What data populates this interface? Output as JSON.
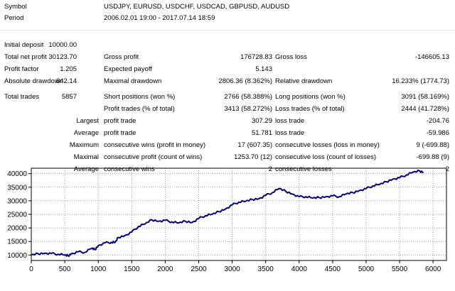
{
  "header": {
    "symbol_label": "Symbol",
    "symbol_value": "USDJPY, EURUSD, USDCHF, USDCAD, GBPUSD, AUDUSD",
    "period_label": "Period",
    "period_value": "2006.02.01 19:00 - 2017.07.14 18:59"
  },
  "report": {
    "initial_deposit_label": "Initial deposit",
    "initial_deposit": "10000.00",
    "total_net_profit_label": "Total net profit",
    "total_net_profit": "30123.70",
    "gross_profit_label": "Gross profit",
    "gross_profit": "176728.83",
    "gross_loss_label": "Gross loss",
    "gross_loss": "-146605.13",
    "profit_factor_label": "Profit factor",
    "profit_factor": "1.205",
    "expected_payoff_label": "Expected payoff",
    "expected_payoff": "5.143",
    "absolute_drawdown_label": "Absolute drawdown",
    "absolute_drawdown": "842.14",
    "maximal_drawdown_label": "Maximal drawdown",
    "maximal_drawdown": "2806.36 (8.362%)",
    "relative_drawdown_label": "Relative drawdown",
    "relative_drawdown": "16.233% (1774.73)",
    "total_trades_label": "Total trades",
    "total_trades": "5857",
    "short_positions_label": "Short positions (won %)",
    "short_positions": "2766 (58.388%)",
    "long_positions_label": "Long positions (won %)",
    "long_positions": "3091 (58.169%)",
    "profit_trades_label": "Profit trades (% of total)",
    "profit_trades": "3413 (58.272%)",
    "loss_trades_label": "Loss trades (% of total)",
    "loss_trades": "2444 (41.728%)",
    "largest_label": "Largest",
    "largest_profit_trade_label": "profit trade",
    "largest_profit_trade": "307.29",
    "largest_loss_trade_label": "loss trade",
    "largest_loss_trade": "-204.76",
    "average_label": "Average",
    "average_profit_trade_label": "profit trade",
    "average_profit_trade": "51.781",
    "average_loss_trade_label": "loss trade",
    "average_loss_trade": "-59.986",
    "maximum_label": "Maximum",
    "max_consec_wins_label": "consecutive wins (profit in money)",
    "max_consec_wins": "17 (607.35)",
    "max_consec_losses_label": "consecutive losses (loss in money)",
    "max_consec_losses": "9 (-699.88)",
    "maximal_label": "Maximal",
    "maximal_consec_profit_label": "consecutive profit (count of wins)",
    "maximal_consec_profit": "1253.70 (12)",
    "maximal_consec_loss_label": "consecutive loss (count of losses)",
    "maximal_consec_loss": "-699.88 (9)",
    "average2_label": "Average",
    "avg_consec_wins_label": "consecutive wins",
    "avg_consec_wins": "2",
    "avg_consec_losses_label": "consecutive losses",
    "avg_consec_losses": "2"
  },
  "chart_data": {
    "type": "line",
    "xlim": [
      0,
      6200
    ],
    "ylim": [
      8000,
      42000
    ],
    "x_ticks": [
      0,
      500,
      1000,
      1500,
      2000,
      2500,
      3000,
      3500,
      4000,
      4500,
      5000,
      5500,
      6000
    ],
    "y_ticks": [
      10000,
      15000,
      20000,
      25000,
      30000,
      35000,
      40000
    ],
    "grid": true,
    "line_color": "#000080",
    "background": "#ffffff",
    "series": [
      {
        "x": [
          0,
          100,
          200,
          300,
          400,
          500,
          550,
          600,
          700,
          800,
          900,
          950,
          1000,
          1100,
          1200,
          1250,
          1300,
          1400,
          1500,
          1600,
          1700,
          1800,
          1900,
          2000,
          2100,
          2200,
          2300,
          2400,
          2500,
          2600,
          2700,
          2800,
          2900,
          3000,
          3100,
          3200,
          3300,
          3400,
          3500,
          3600,
          3700,
          3800,
          3900,
          4000,
          4100,
          4200,
          4300,
          4400,
          4500,
          4600,
          4700,
          4800,
          4900,
          5000,
          5100,
          5200,
          5300,
          5400,
          5500,
          5600,
          5700,
          5800,
          5857
        ],
        "y": [
          10000,
          10500,
          10700,
          10600,
          10300,
          10000,
          9700,
          10500,
          11200,
          11000,
          12500,
          12000,
          13500,
          14500,
          14700,
          14600,
          16500,
          17200,
          18500,
          20500,
          21500,
          23000,
          22500,
          22800,
          22200,
          21800,
          22500,
          22000,
          23500,
          24500,
          25000,
          26000,
          27000,
          28500,
          29500,
          29800,
          30500,
          30800,
          32000,
          33000,
          34500,
          33500,
          32500,
          31500,
          31500,
          31000,
          31200,
          31500,
          31800,
          31500,
          32500,
          33000,
          33800,
          34500,
          35500,
          36000,
          37000,
          38000,
          38500,
          39500,
          40500,
          41000,
          40500
        ]
      }
    ]
  }
}
